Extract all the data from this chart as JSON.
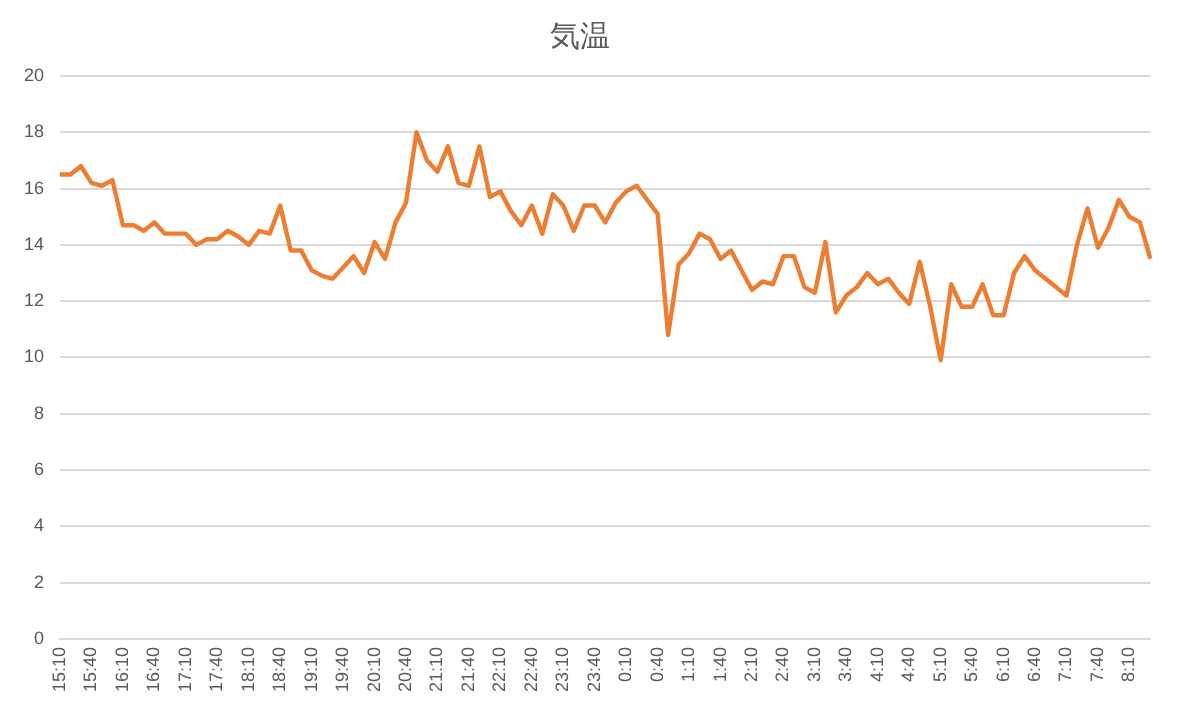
{
  "chart_data": {
    "type": "line",
    "title": "気温",
    "categories": [
      "15:10",
      null,
      null,
      "15:40",
      null,
      null,
      "16:10",
      null,
      null,
      "16:40",
      null,
      null,
      "17:10",
      null,
      null,
      "17:40",
      null,
      null,
      "18:10",
      null,
      null,
      "18:40",
      null,
      null,
      "19:10",
      null,
      null,
      "19:40",
      null,
      null,
      "20:10",
      null,
      null,
      "20:40",
      null,
      null,
      "21:10",
      null,
      null,
      "21:40",
      null,
      null,
      "22:10",
      null,
      null,
      "22:40",
      null,
      null,
      "23:10",
      null,
      null,
      "23:40",
      null,
      null,
      "0:10",
      null,
      null,
      "0:40",
      null,
      null,
      "1:10",
      null,
      null,
      "1:40",
      null,
      null,
      "2:10",
      null,
      null,
      "2:40",
      null,
      null,
      "3:10",
      null,
      null,
      "3:40",
      null,
      null,
      "4:10",
      null,
      null,
      "4:40",
      null,
      null,
      "5:10",
      null,
      null,
      "5:40",
      null,
      null,
      "6:10",
      null,
      null,
      "6:40",
      null,
      null,
      "7:10",
      null,
      null,
      "7:40",
      null,
      null,
      "8:10",
      null,
      null
    ],
    "series": [
      {
        "color": "#ed7d31",
        "values": [
          16.5,
          16.5,
          16.8,
          16.2,
          16.1,
          16.3,
          14.7,
          14.7,
          14.5,
          14.8,
          14.4,
          14.4,
          14.4,
          14.0,
          14.2,
          14.2,
          14.5,
          14.3,
          14.0,
          14.5,
          14.4,
          15.4,
          13.8,
          13.8,
          13.1,
          12.9,
          12.8,
          13.2,
          13.6,
          13.0,
          14.1,
          13.5,
          14.8,
          15.5,
          18.0,
          17.0,
          16.6,
          17.5,
          16.2,
          16.1,
          17.5,
          15.7,
          15.9,
          15.2,
          14.7,
          15.4,
          14.4,
          15.8,
          15.4,
          14.5,
          15.4,
          15.4,
          14.8,
          15.5,
          15.9,
          16.1,
          15.6,
          15.1,
          10.8,
          13.3,
          13.7,
          14.4,
          14.2,
          13.5,
          13.8,
          13.1,
          12.4,
          12.7,
          12.6,
          13.6,
          13.6,
          12.5,
          12.3,
          14.1,
          11.6,
          12.2,
          12.5,
          13.0,
          12.6,
          12.8,
          12.3,
          11.9,
          13.4,
          11.8,
          9.9,
          12.6,
          11.8,
          11.8,
          12.6,
          11.5,
          11.5,
          13.0,
          13.6,
          13.1,
          12.8,
          12.5,
          12.2,
          14.0,
          15.3,
          13.9,
          14.6,
          15.6,
          15.0,
          14.8,
          13.5
        ]
      }
    ],
    "ylim": [
      0,
      20
    ],
    "yticks": [
      0,
      2,
      4,
      6,
      8,
      10,
      12,
      14,
      16,
      18,
      20
    ],
    "grid": "y",
    "legend": false,
    "marker": "none",
    "line_style": "solid"
  }
}
